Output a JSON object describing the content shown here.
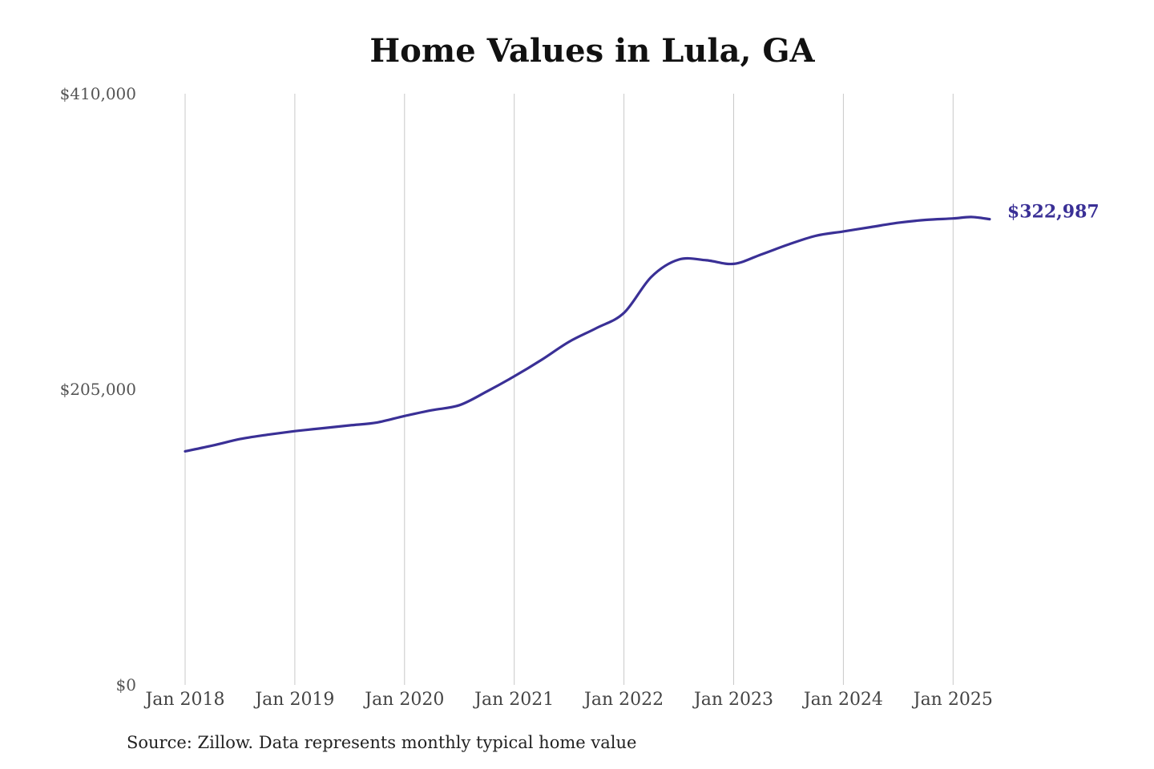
{
  "chart_data": {
    "type": "line",
    "title": "Home Values in Lula, GA",
    "xlabel": "",
    "ylabel": "",
    "ylim": [
      0,
      410000
    ],
    "y_ticks": [
      {
        "value": 0,
        "label": "$0"
      },
      {
        "value": 205000,
        "label": "$205,000"
      },
      {
        "value": 410000,
        "label": "$410,000"
      }
    ],
    "x_ticks": [
      {
        "value": "2018-01",
        "label": "Jan 2018"
      },
      {
        "value": "2019-01",
        "label": "Jan 2019"
      },
      {
        "value": "2020-01",
        "label": "Jan 2020"
      },
      {
        "value": "2021-01",
        "label": "Jan 2021"
      },
      {
        "value": "2022-01",
        "label": "Jan 2022"
      },
      {
        "value": "2023-01",
        "label": "Jan 2023"
      },
      {
        "value": "2024-01",
        "label": "Jan 2024"
      },
      {
        "value": "2025-01",
        "label": "Jan 2025"
      }
    ],
    "grid": "vertical",
    "legend": "none",
    "series": [
      {
        "color": "#3a3096",
        "points": [
          {
            "x": "2018-01",
            "y": 162000
          },
          {
            "x": "2018-04",
            "y": 166000
          },
          {
            "x": "2018-07",
            "y": 170500
          },
          {
            "x": "2018-10",
            "y": 173500
          },
          {
            "x": "2019-01",
            "y": 176000
          },
          {
            "x": "2019-04",
            "y": 178000
          },
          {
            "x": "2019-07",
            "y": 180000
          },
          {
            "x": "2019-10",
            "y": 182000
          },
          {
            "x": "2020-01",
            "y": 186500
          },
          {
            "x": "2020-04",
            "y": 190500
          },
          {
            "x": "2020-07",
            "y": 194000
          },
          {
            "x": "2020-10",
            "y": 203500
          },
          {
            "x": "2021-01",
            "y": 214000
          },
          {
            "x": "2021-04",
            "y": 225500
          },
          {
            "x": "2021-07",
            "y": 238000
          },
          {
            "x": "2021-10",
            "y": 247500
          },
          {
            "x": "2022-01",
            "y": 258000
          },
          {
            "x": "2022-04",
            "y": 283000
          },
          {
            "x": "2022-07",
            "y": 295000
          },
          {
            "x": "2022-10",
            "y": 294500
          },
          {
            "x": "2023-01",
            "y": 292000
          },
          {
            "x": "2023-04",
            "y": 298500
          },
          {
            "x": "2023-07",
            "y": 305500
          },
          {
            "x": "2023-10",
            "y": 311500
          },
          {
            "x": "2024-01",
            "y": 314500
          },
          {
            "x": "2024-04",
            "y": 317500
          },
          {
            "x": "2024-07",
            "y": 320500
          },
          {
            "x": "2024-10",
            "y": 322500
          },
          {
            "x": "2025-01",
            "y": 323500
          },
          {
            "x": "2025-03",
            "y": 324500
          },
          {
            "x": "2025-05",
            "y": 322987
          }
        ]
      }
    ],
    "end_label": "$322,987",
    "source": "Source: Zillow. Data represents monthly typical home value"
  }
}
